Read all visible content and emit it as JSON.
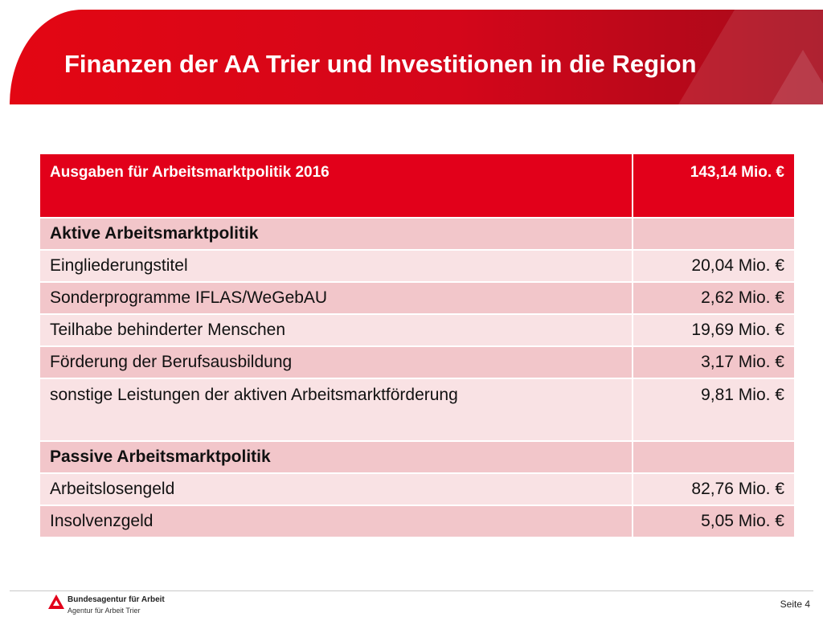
{
  "header": {
    "title": "Finanzen der AA Trier und Investitionen in die Region"
  },
  "table": {
    "header": {
      "label": "Ausgaben für Arbeitsmarktpolitik 2016",
      "value": "143,14 Mio. €"
    },
    "rows": [
      {
        "label": "Aktive Arbeitsmarktpolitik",
        "value": ""
      },
      {
        "label": "Eingliederungstitel",
        "value": "20,04 Mio. €"
      },
      {
        "label": "Sonderprogramme IFLAS/WeGebAU",
        "value": "2,62 Mio. €"
      },
      {
        "label": "Teilhabe behinderter Menschen",
        "value": "19,69 Mio. €"
      },
      {
        "label": "Förderung der Berufsausbildung",
        "value": "3,17 Mio. €"
      },
      {
        "label": "sonstige Leistungen der aktiven Arbeitsmarktförderung",
        "value": "9,81 Mio. €"
      },
      {
        "label": "Passive Arbeitsmarktpolitik",
        "value": ""
      },
      {
        "label": "Arbeitslosengeld",
        "value": "82,76 Mio. €"
      },
      {
        "label": "Insolvenzgeld",
        "value": "5,05 Mio. €"
      }
    ]
  },
  "footer": {
    "org_name": "Bundesagentur für Arbeit",
    "org_sub": "Agentur für Arbeit Trier",
    "page_label": "Seite 4"
  },
  "colors": {
    "brand_red": "#e2001a",
    "row_dark": "#f2c6ca",
    "row_light": "#f9e2e4"
  }
}
